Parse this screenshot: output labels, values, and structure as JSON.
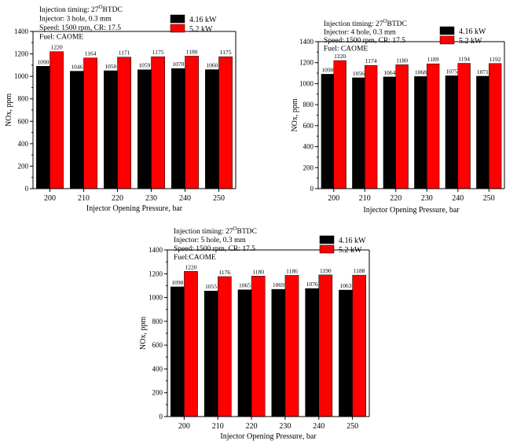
{
  "chart_data": [
    {
      "type": "bar",
      "categories": [
        "200",
        "210",
        "220",
        "230",
        "240",
        "250"
      ],
      "series": [
        {
          "name": "4.16 kW",
          "values": [
            1090,
            1046,
            1050,
            1059,
            1070,
            1060
          ]
        },
        {
          "name": "5.2 kW",
          "values": [
            1220,
            1164,
            1171,
            1175,
            1180,
            1175
          ]
        }
      ],
      "data_labels": [
        [
          "1090",
          "1046",
          "1050",
          "1059",
          "1070",
          "1060"
        ],
        [
          "1220",
          "1164",
          "1171",
          "1175",
          "1180",
          "1175"
        ]
      ],
      "annotations": [
        {
          "main": "Injection timing: 27",
          "sup": "O",
          "tail": "BTDC"
        },
        {
          "main": "Injector: 3 hole, 0.3 mm"
        },
        {
          "main": "Speed: 1500 rpm, CR: 17.5"
        },
        {
          "main": "Fuel: CAOME"
        }
      ],
      "xlabel": "Injector Opening Pressure, bar",
      "ylabel": "NOx, ppm",
      "ylim": [
        0,
        1400
      ],
      "yticks": [
        "0",
        "200",
        "400",
        "600",
        "800",
        "1000",
        "1200",
        "1400"
      ],
      "legend_position": "top-right",
      "colors": [
        "#000000",
        "#ff0000"
      ],
      "grid": false
    },
    {
      "type": "bar",
      "categories": [
        "200",
        "210",
        "220",
        "230",
        "240",
        "250"
      ],
      "series": [
        {
          "name": "4.16 kW",
          "values": [
            1090,
            1056,
            1064,
            1068,
            1075,
            1071
          ]
        },
        {
          "name": "5.2 kW",
          "values": [
            1220,
            1174,
            1180,
            1189,
            1194,
            1192
          ]
        }
      ],
      "data_labels": [
        [
          "1090",
          "1056",
          "1064",
          "1068",
          "1075",
          "1071"
        ],
        [
          "1220",
          "1174",
          "1180",
          "1189",
          "1194",
          "1192"
        ]
      ],
      "annotations": [
        {
          "main": "Injection timing: 27",
          "sup": "O",
          "tail": "BTDC"
        },
        {
          "main": "Injector: 4 hole, 0.3 mm"
        },
        {
          "main": "Speed: 1500 rpm, CR: 17.5"
        },
        {
          "main": "Fuel: CAOME"
        }
      ],
      "xlabel": "Injector Opening Pressure, bar",
      "ylabel": "NOx, ppm",
      "ylim": [
        0,
        1400
      ],
      "yticks": [
        "0",
        "200",
        "400",
        "600",
        "800",
        "1000",
        "1200",
        "1400"
      ],
      "legend_position": "top-right",
      "colors": [
        "#000000",
        "#ff0000"
      ],
      "grid": false
    },
    {
      "type": "bar",
      "categories": [
        "200",
        "210",
        "220",
        "230",
        "240",
        "250"
      ],
      "series": [
        {
          "name": "4.16 kW",
          "values": [
            1090,
            1055,
            1065,
            1069,
            1076,
            1063
          ]
        },
        {
          "name": "5.2 kW",
          "values": [
            1220,
            1176,
            1180,
            1186,
            1190,
            1188
          ]
        }
      ],
      "data_labels": [
        [
          "1090",
          "1055",
          "1065",
          "1069",
          "1076",
          "1063"
        ],
        [
          "1220",
          "1176",
          "1180",
          "1186",
          "1190",
          "1188"
        ]
      ],
      "annotations": [
        {
          "main": "Injection timing: 27",
          "sup": "O",
          "tail": "BTDC"
        },
        {
          "main": "Injector: 5 hole, 0.3 mm"
        },
        {
          "main": "Speed: 1500 rpm, CR: 17.5"
        },
        {
          "main": "Fuel:CAOME"
        }
      ],
      "xlabel": "Injector Opening Pressure, bar",
      "ylabel": "NOx, ppm",
      "ylim": [
        0,
        1400
      ],
      "yticks": [
        "0",
        "200",
        "400",
        "600",
        "800",
        "1000",
        "1200",
        "1400"
      ],
      "legend_position": "top-right",
      "colors": [
        "#000000",
        "#ff0000"
      ],
      "grid": false
    }
  ]
}
